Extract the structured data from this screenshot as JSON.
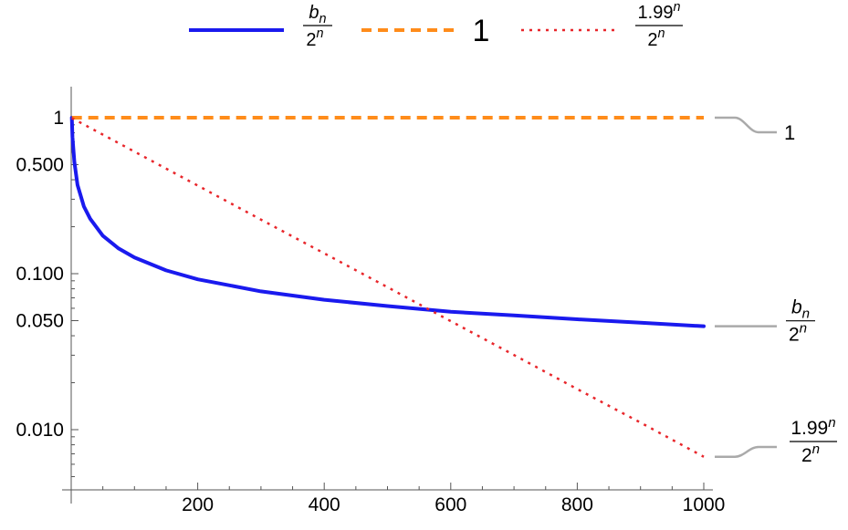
{
  "chart_data": {
    "type": "line",
    "title": "",
    "xlabel": "",
    "ylabel": "",
    "xlim": [
      0,
      1000
    ],
    "ylim": [
      0.005,
      1.2
    ],
    "yscale": "log",
    "grid": false,
    "legend_position": "top",
    "x_ticks": [
      200,
      400,
      600,
      800,
      1000
    ],
    "x_tick_labels": [
      "200",
      "400",
      "600",
      "800",
      "1000"
    ],
    "y_ticks": [
      1,
      0.5,
      0.1,
      0.05,
      0.01
    ],
    "y_tick_labels": [
      "1",
      "0.500",
      "0.100",
      "0.050",
      "0.010"
    ],
    "series": [
      {
        "id": "bn",
        "name": "b_n / 2^n",
        "label_num": "b",
        "label_num_sub": "n",
        "label_den": "2",
        "label_den_sup": "n",
        "color": "#1a1aee",
        "style": "solid",
        "x": [
          1,
          2,
          5,
          10,
          20,
          30,
          50,
          75,
          100,
          150,
          200,
          300,
          400,
          500,
          600,
          700,
          800,
          900,
          1000
        ],
        "y": [
          1.0,
          0.75,
          0.52,
          0.37,
          0.27,
          0.225,
          0.175,
          0.145,
          0.127,
          0.105,
          0.092,
          0.077,
          0.068,
          0.062,
          0.057,
          0.054,
          0.051,
          0.0485,
          0.046
        ]
      },
      {
        "id": "one",
        "name": "1",
        "label": "1",
        "color": "#ff8c1a",
        "style": "dashed",
        "x": [
          1,
          1000
        ],
        "y": [
          1,
          1
        ]
      },
      {
        "id": "ratio",
        "name": "1.99^n / 2^n",
        "label_num": "1.99",
        "label_num_sup": "n",
        "label_den": "2",
        "label_den_sup": "n",
        "color": "#e8262b",
        "style": "dotted",
        "x": [
          1,
          100,
          200,
          300,
          400,
          500,
          600,
          700,
          800,
          900,
          1000
        ],
        "y": [
          0.995,
          0.606,
          0.367,
          0.222,
          0.135,
          0.0819,
          0.0496,
          0.0301,
          0.0182,
          0.0111,
          0.0067
        ]
      }
    ]
  }
}
